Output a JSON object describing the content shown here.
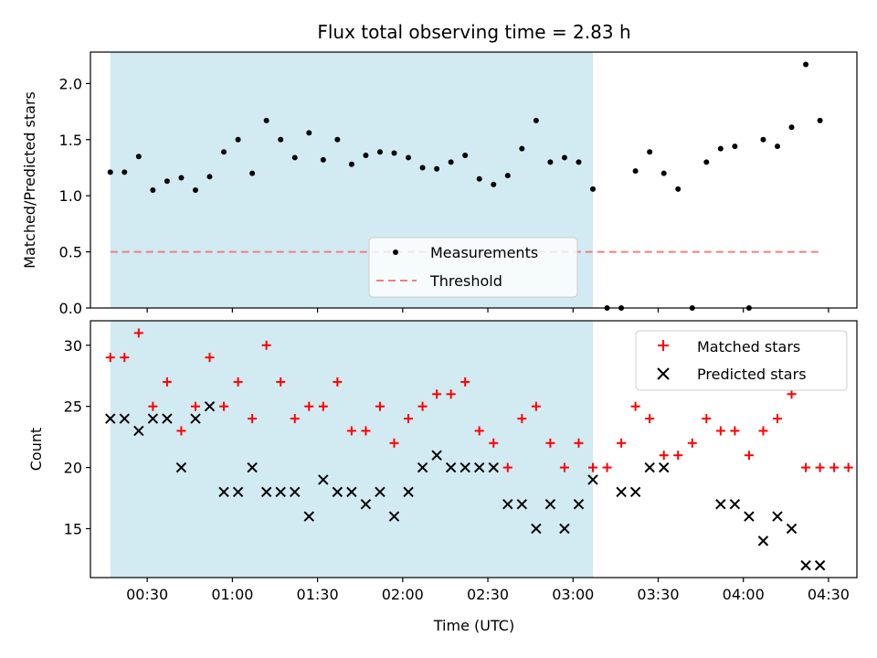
{
  "title": "Flux total observing time = 2.83 h",
  "xlabel": "Time (UTC)",
  "colors": {
    "shade": "#add8e6",
    "measurement": "#000000",
    "threshold": "#f08080",
    "matched": "#ff0000",
    "predicted": "#000000"
  },
  "chart_data": [
    {
      "type": "scatter",
      "ylabel": "Matched/Predicted stars",
      "ylim": [
        0,
        2.28
      ],
      "y_ticks": [
        "0.0",
        "0.5",
        "1.0",
        "1.5",
        "2.0"
      ],
      "x_ticks": [
        "00:30",
        "01:00",
        "01:30",
        "02:00",
        "02:30",
        "03:00",
        "03:30",
        "04:00",
        "04:30"
      ],
      "xlim_min": [
        10,
        280
      ],
      "shaded_range_min": [
        17,
        187
      ],
      "legend": {
        "position": "lower center",
        "entries": [
          "Measurements",
          "Threshold"
        ]
      },
      "threshold": {
        "name": "Threshold",
        "y": 0.5,
        "x_range_min": [
          17,
          267
        ]
      },
      "series": [
        {
          "name": "Measurements",
          "x_min": [
            17,
            22,
            27,
            32,
            37,
            42,
            47,
            52,
            57,
            62,
            67,
            72,
            77,
            82,
            87,
            92,
            97,
            102,
            107,
            112,
            117,
            122,
            127,
            132,
            137,
            142,
            147,
            152,
            157,
            162,
            167,
            172,
            177,
            182,
            187,
            192,
            197,
            202,
            207,
            212,
            217,
            222,
            227,
            232,
            237,
            242,
            247,
            252,
            257,
            262,
            267
          ],
          "y": [
            1.21,
            1.21,
            1.35,
            1.05,
            1.13,
            1.16,
            1.05,
            1.17,
            1.39,
            1.5,
            1.2,
            1.67,
            1.5,
            1.34,
            1.56,
            1.32,
            1.5,
            1.28,
            1.36,
            1.39,
            1.38,
            1.34,
            1.25,
            1.24,
            1.3,
            1.36,
            1.15,
            1.1,
            1.18,
            1.42,
            1.67,
            1.3,
            1.34,
            1.3,
            1.06,
            0.0,
            0.0,
            1.22,
            1.39,
            1.2,
            1.06,
            0.0,
            1.3,
            1.42,
            1.44,
            0.0,
            1.5,
            1.44,
            1.61,
            2.17,
            1.67
          ]
        }
      ]
    },
    {
      "type": "scatter",
      "ylabel": "Count",
      "ylim": [
        11,
        32
      ],
      "y_ticks": [
        "15",
        "20",
        "25",
        "30"
      ],
      "x_ticks": [
        "00:30",
        "01:00",
        "01:30",
        "02:00",
        "02:30",
        "03:00",
        "03:30",
        "04:00",
        "04:30"
      ],
      "xlim_min": [
        10,
        280
      ],
      "shaded_range_min": [
        17,
        187
      ],
      "legend": {
        "position": "upper right",
        "entries": [
          "Matched stars",
          "Predicted stars"
        ]
      },
      "series": [
        {
          "name": "Matched stars",
          "x_min": [
            17,
            22,
            27,
            32,
            37,
            42,
            47,
            52,
            57,
            62,
            67,
            72,
            77,
            82,
            87,
            92,
            97,
            102,
            107,
            112,
            117,
            122,
            127,
            132,
            137,
            142,
            147,
            152,
            157,
            162,
            167,
            172,
            177,
            182,
            187,
            192,
            197,
            202,
            207,
            212,
            217,
            222,
            227,
            232,
            237,
            242,
            247,
            252,
            257,
            262,
            267,
            272,
            277
          ],
          "y": [
            29,
            29,
            31,
            25,
            27,
            23,
            25,
            29,
            25,
            27,
            24,
            30,
            27,
            24,
            25,
            25,
            27,
            23,
            23,
            25,
            22,
            24,
            25,
            26,
            26,
            27,
            23,
            22,
            20,
            24,
            25,
            22,
            20,
            22,
            20,
            20,
            22,
            25,
            24,
            21,
            21,
            22,
            24,
            23,
            23,
            21,
            23,
            24,
            26,
            20,
            20,
            20,
            20
          ]
        },
        {
          "name": "Predicted stars",
          "x_min": [
            17,
            22,
            27,
            32,
            37,
            42,
            47,
            52,
            57,
            62,
            67,
            72,
            77,
            82,
            87,
            92,
            97,
            102,
            107,
            112,
            117,
            122,
            127,
            132,
            137,
            142,
            147,
            152,
            157,
            162,
            167,
            172,
            177,
            182,
            187,
            197,
            202,
            207,
            212,
            232,
            237,
            242,
            247,
            252,
            257,
            262,
            267
          ],
          "y": [
            24,
            24,
            23,
            24,
            24,
            20,
            24,
            25,
            18,
            18,
            20,
            18,
            18,
            18,
            16,
            19,
            18,
            18,
            17,
            18,
            16,
            18,
            20,
            21,
            20,
            20,
            20,
            20,
            17,
            17,
            15,
            17,
            15,
            17,
            19,
            18,
            18,
            20,
            20,
            17,
            17,
            16,
            14,
            16,
            15,
            12,
            12
          ]
        }
      ]
    }
  ]
}
